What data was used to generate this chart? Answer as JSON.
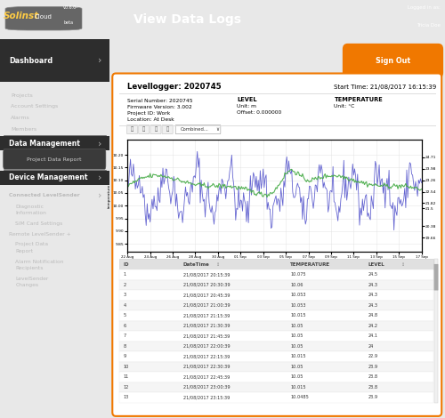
{
  "title": "View Data Logs",
  "version": "v0.6.0-\nbeta",
  "logged_in": "Logged in as:\nTricia Doe",
  "sign_out": "Sign Out",
  "header_bg": "#F07800",
  "sidebar_bg": "#1a1a1a",
  "content_bg": "#e8e8e8",
  "orange_border": "#F07800",
  "dashboard_label": "Dashboard",
  "sidebar_items_dash": [
    "Projects",
    "Account Settings",
    "Alarms",
    "Members"
  ],
  "sidebar_section2": "Data Management",
  "sidebar_items_data": [
    "Project Data Report"
  ],
  "sidebar_section3": "Device Management",
  "levellogger_id": "Levellogger: 2020745",
  "start_time": "Start Time: 21/08/2017 16:15:39",
  "serial_number": "Serial Number: 2020745",
  "firmware": "Firmware Version: 3.002",
  "project_id": "Project ID: Work",
  "location": "Location: At Desk",
  "level_label": "LEVEL",
  "level_unit": "Unit: m",
  "level_offset": "Offset: 0.000000",
  "temp_label": "TEMPERATURE",
  "temp_unit": "Unit: °C",
  "table_headers": [
    "ID",
    "DateTime",
    "TEMPERATURE",
    "LEVEL"
  ],
  "table_rows": [
    [
      "1",
      "21/08/2017 20:15:39",
      "10.075",
      "24.5"
    ],
    [
      "2",
      "21/08/2017 20:30:39",
      "10.06",
      "24.3"
    ],
    [
      "3",
      "21/08/2017 20:45:39",
      "10.053",
      "24.3"
    ],
    [
      "4",
      "21/08/2017 21:00:39",
      "10.053",
      "24.3"
    ],
    [
      "5",
      "21/08/2017 21:15:39",
      "10.015",
      "24.8"
    ],
    [
      "6",
      "21/08/2017 21:30:39",
      "10.05",
      "24.2"
    ],
    [
      "7",
      "21/08/2017 21:45:39",
      "10.05",
      "24.1"
    ],
    [
      "8",
      "21/08/2017 22:00:39",
      "10.05",
      "24"
    ],
    [
      "9",
      "21/08/2017 22:15:39",
      "10.015",
      "22.9"
    ],
    [
      "10",
      "21/08/2017 22:30:39",
      "10.05",
      "23.9"
    ],
    [
      "11",
      "21/08/2017 22:45:39",
      "10.05",
      "23.8"
    ],
    [
      "12",
      "21/08/2017 23:00:39",
      "10.015",
      "23.8"
    ],
    [
      "13",
      "21/08/2017 23:15:39",
      "10.0485",
      "23.9"
    ]
  ],
  "x_ticks": [
    "22 Aug",
    "24 Aug",
    "26 Aug",
    "28 Aug",
    "30 Aug",
    "01 Sep",
    "03 Sep",
    "05 Sep",
    "07 Sep",
    "09 Sep",
    "11 Sep",
    "13 Sep",
    "15 Sep",
    "17 Sep"
  ],
  "y_left_ticks": [
    9.85,
    9.9,
    9.95,
    10.0,
    10.05,
    10.1,
    10.15,
    10.2
  ],
  "y_right_ticks": [
    19.66,
    20.38,
    21.5,
    21.82,
    22.54,
    23.26,
    23.98,
    24.71
  ],
  "y_right_labels": [
    "19.66",
    "20.38",
    "21.5",
    "21.82",
    "22.54",
    "23.26",
    "23.98",
    "24.71"
  ],
  "blue_color": "#5555cc",
  "green_color": "#44aa44"
}
